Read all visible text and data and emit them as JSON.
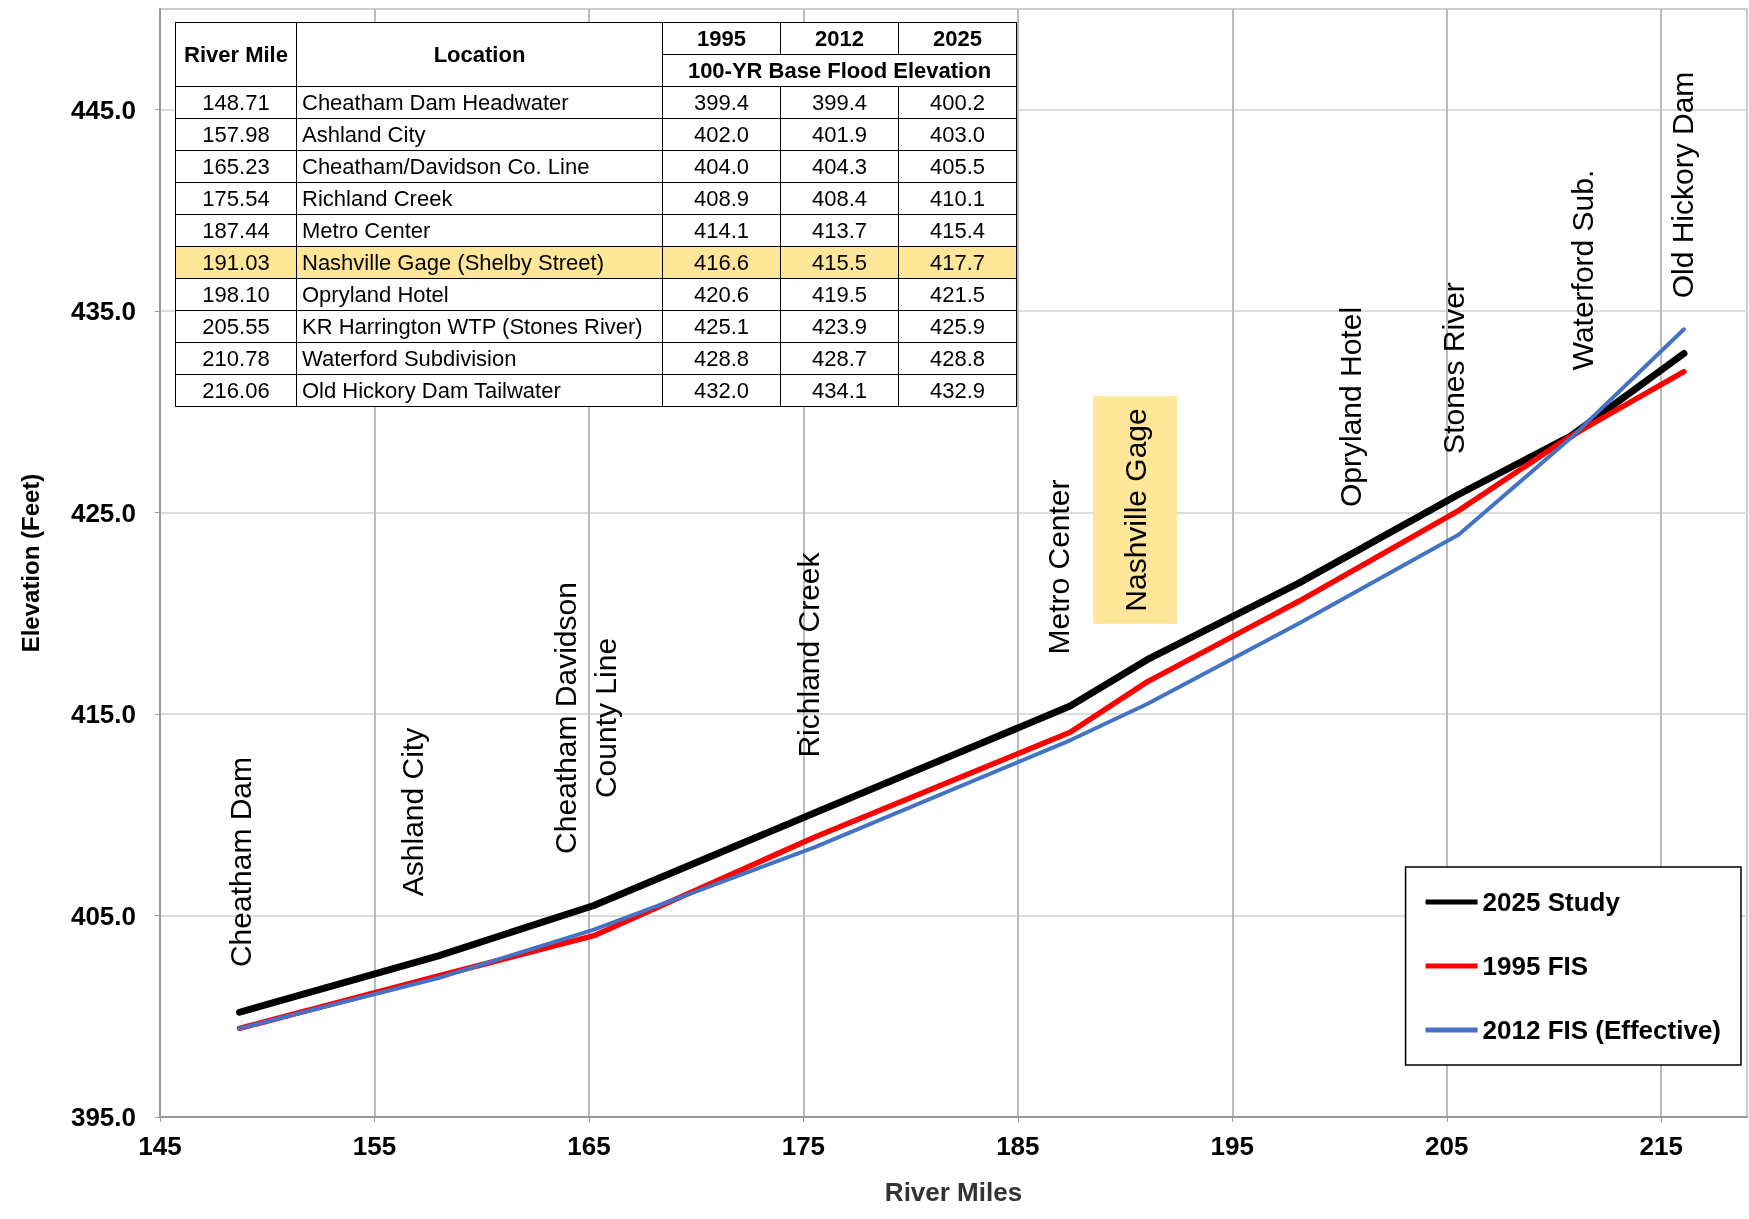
{
  "chart_data": {
    "type": "line",
    "xlabel": "River Miles",
    "ylabel": "Elevation (Feet)",
    "x": [
      148.71,
      157.98,
      165.23,
      175.54,
      187.44,
      191.03,
      198.1,
      205.55,
      210.78,
      216.06
    ],
    "series": [
      {
        "name": "2025 Study",
        "color": "#000000",
        "values": [
          400.2,
          403.0,
          405.5,
          410.1,
          415.4,
          417.7,
          421.5,
          425.9,
          428.8,
          432.9
        ]
      },
      {
        "name": "1995 FIS",
        "color": "#ff0000",
        "values": [
          399.4,
          402.0,
          404.0,
          408.9,
          414.1,
          416.6,
          420.6,
          425.1,
          428.8,
          432.0
        ]
      },
      {
        "name": "2012 FIS (Effective)",
        "color": "#4472c4",
        "values": [
          399.4,
          401.9,
          404.3,
          408.4,
          413.7,
          415.5,
          419.5,
          423.9,
          428.7,
          434.1
        ]
      }
    ],
    "xlim": [
      145,
      219
    ],
    "xticks": [
      145,
      155,
      165,
      175,
      185,
      195,
      205,
      215
    ],
    "ylim": [
      395,
      450
    ],
    "yticks": [
      {
        "value": 395,
        "label": "395.0"
      },
      {
        "value": 405,
        "label": "405.0"
      },
      {
        "value": 415,
        "label": "415.0"
      },
      {
        "value": 425,
        "label": "425.0"
      },
      {
        "value": 435,
        "label": "435.0"
      },
      {
        "value": 445,
        "label": "445.0"
      }
    ],
    "grid": true,
    "legend": "bottom right",
    "marker": "none",
    "line_style": "solid",
    "annotations": [
      "River Mile",
      "Location",
      "1995",
      "2012",
      "2025",
      "100-YR Base Flood Elevation",
      "148.71",
      "Cheatham Dam Headwater",
      "399.4",
      "399.4",
      "400.2",
      "157.98",
      "Ashland City",
      "402.0",
      "401.9",
      "403.0",
      "165.23",
      "Cheatham/Davidson Co. Line",
      "404.0",
      "404.3",
      "405.5",
      "175.54",
      "Richland Creek",
      "408.9",
      "408.4",
      "410.1",
      "187.44",
      "Metro Center",
      "414.1",
      "413.7",
      "415.4",
      "191.03",
      "Nashville Gage (Shelby Street)",
      "416.6",
      "415.5",
      "417.7",
      "198.10",
      "Opryland Hotel",
      "420.6",
      "419.5",
      "421.5",
      "205.55",
      "KR Harrington WTP (Stones River)",
      "425.1",
      "423.9",
      "425.9",
      "210.78",
      "Waterford Subdivision",
      "428.8",
      "428.7",
      "428.8",
      "216.06",
      "Old Hickory Dam Tailwater",
      "432.0",
      "434.1",
      "432.9",
      "Cheatham Dam",
      "Ashland City",
      "Cheatham Davidson\nCounty Line",
      "Richland Creek",
      "Metro Center",
      "Nashville Gage",
      "Opryland Hotel",
      "Stones River",
      "Waterford Sub.",
      "Old Hickory Dam"
    ]
  }
}
